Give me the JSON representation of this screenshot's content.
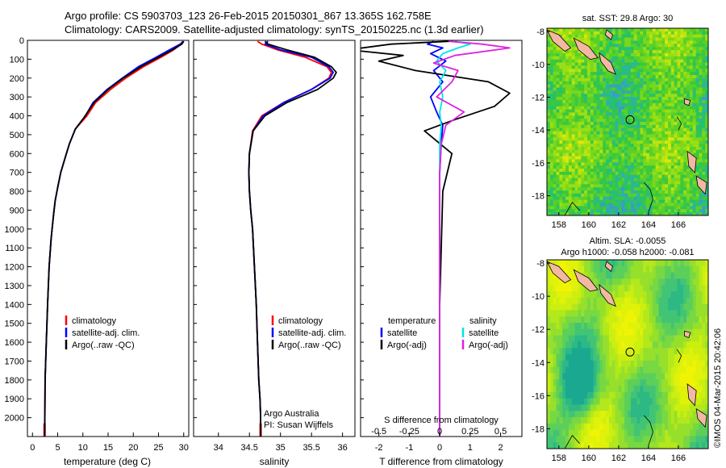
{
  "header": {
    "line1": "Argo profile: CS 5903703_123 26-Feb-2015 20150301_867 13.365S 162.758E",
    "line2": "Climatology: CARS2009. Satellite-adjusted climatology: synTS_20150225.nc (1.3d earlier)"
  },
  "colors": {
    "climatology": "#ff0000",
    "satellite": "#0000ff",
    "argo": "#000000",
    "sat_salinity": "#00e5e5",
    "argo_salinity": "#e020e0"
  },
  "legend": {
    "climatology": "climatology",
    "satellite_adj": "satellite-adj. clim.",
    "argo_raw": "Argo(..raw -QC)",
    "temperature_head": "temperature",
    "salinity_head": "salinity",
    "satellite": "satellite",
    "argo_adj": "Argo(-adj)"
  },
  "credits": {
    "org": "Argo Australia",
    "pi": "PI: Susan Wijffels",
    "stamp": "©IMOS 04-Mar-2015 20:42:06"
  },
  "chart_data": [
    {
      "type": "line",
      "id": "temperature",
      "xlabel": "temperature (deg C)",
      "ylabel": "",
      "xlim": [
        -1,
        31
      ],
      "ylim": [
        2100,
        0
      ],
      "xticks": [
        0,
        5,
        10,
        15,
        20,
        25,
        30
      ],
      "yticks": [
        0,
        100,
        200,
        300,
        400,
        500,
        600,
        700,
        800,
        900,
        1000,
        1100,
        1200,
        1300,
        1400,
        1500,
        1600,
        1700,
        1800,
        1900,
        2000
      ],
      "series": [
        {
          "name": "climatology",
          "color": "#ff0000",
          "x": [
            29.8,
            29.5,
            28.0,
            25.5,
            22.0,
            18.5,
            15.5,
            12.5,
            10.8,
            8.5,
            7.3,
            6.5,
            5.6,
            5.0,
            4.5,
            4.2,
            3.7,
            3.3,
            3.0,
            2.75,
            2.5,
            2.45,
            2.4
          ],
          "y": [
            5,
            20,
            50,
            90,
            140,
            200,
            260,
            330,
            400,
            470,
            550,
            620,
            700,
            780,
            850,
            920,
            1050,
            1200,
            1400,
            1600,
            1800,
            2000,
            2100
          ]
        },
        {
          "name": "satellite-adj. clim.",
          "color": "#0000ff",
          "x": [
            29.9,
            29.3,
            27.2,
            24.5,
            21.0,
            17.8,
            14.8,
            12.0,
            10.5,
            8.5,
            7.3,
            6.5,
            5.6,
            5.0,
            4.5,
            4.2,
            3.7,
            3.3,
            3.0,
            2.75,
            2.5,
            2.45,
            2.4
          ],
          "y": [
            5,
            20,
            50,
            90,
            140,
            200,
            260,
            330,
            400,
            470,
            550,
            620,
            700,
            780,
            850,
            920,
            1050,
            1200,
            1400,
            1600,
            1800,
            2000,
            2100
          ]
        },
        {
          "name": "Argo(..raw -QC)",
          "color": "#000000",
          "x": [
            30.0,
            29.6,
            27.8,
            25.0,
            21.5,
            18.0,
            15.0,
            12.2,
            10.2,
            8.5,
            7.3,
            6.5,
            5.6,
            5.0,
            4.5,
            4.2,
            3.7,
            3.3,
            3.0,
            2.75,
            2.5,
            2.45,
            2.4
          ],
          "y": [
            5,
            20,
            50,
            90,
            140,
            200,
            260,
            330,
            410,
            470,
            550,
            620,
            700,
            780,
            850,
            920,
            1050,
            1200,
            1400,
            1600,
            1800,
            2000,
            2100
          ]
        }
      ]
    },
    {
      "type": "line",
      "id": "salinity",
      "xlabel": "salinity",
      "ylabel": "",
      "xlim": [
        33.6,
        36.2
      ],
      "ylim": [
        2100,
        0
      ],
      "xticks": [
        34,
        34.5,
        35,
        35.5,
        36
      ],
      "series": [
        {
          "name": "climatology",
          "color": "#ff0000",
          "x": [
            34.63,
            34.7,
            34.95,
            35.4,
            35.75,
            35.82,
            35.78,
            35.5,
            35.05,
            34.7,
            34.55,
            34.5,
            34.49,
            34.5,
            34.52,
            34.55,
            34.58,
            34.61,
            34.63,
            34.65,
            34.67,
            34.68,
            34.68
          ],
          "y": [
            5,
            20,
            50,
            90,
            140,
            170,
            200,
            260,
            330,
            400,
            480,
            600,
            700,
            800,
            900,
            1000,
            1200,
            1400,
            1600,
            1800,
            1900,
            2000,
            2100
          ]
        },
        {
          "name": "satellite-adj. clim.",
          "color": "#0000ff",
          "x": [
            34.8,
            34.75,
            35.0,
            35.5,
            35.78,
            35.85,
            35.8,
            35.5,
            35.05,
            34.72,
            34.56,
            34.5,
            34.49,
            34.5,
            34.52,
            34.55,
            34.58,
            34.61,
            34.63,
            34.65,
            34.67,
            34.68,
            34.68
          ],
          "y": [
            5,
            20,
            50,
            90,
            140,
            170,
            200,
            260,
            330,
            400,
            480,
            600,
            700,
            800,
            900,
            1000,
            1200,
            1400,
            1600,
            1800,
            1900,
            2000,
            2100
          ]
        },
        {
          "name": "Argo(..raw -QC)",
          "color": "#000000",
          "x": [
            34.75,
            34.8,
            35.1,
            35.55,
            35.82,
            35.9,
            35.85,
            35.6,
            35.1,
            34.75,
            34.56,
            34.5,
            34.49,
            34.5,
            34.52,
            34.55,
            34.58,
            34.61,
            34.63,
            34.65,
            34.67,
            34.68,
            34.68
          ],
          "y": [
            5,
            20,
            50,
            90,
            140,
            170,
            200,
            260,
            330,
            400,
            480,
            600,
            700,
            800,
            900,
            1000,
            1200,
            1400,
            1600,
            1800,
            1900,
            2000,
            2100
          ]
        }
      ]
    },
    {
      "type": "line",
      "id": "difference",
      "xlabel": "T difference from climatology",
      "xlabel2": "S difference from climatology",
      "xlim": [
        -2.6,
        2.7
      ],
      "ylim": [
        2100,
        0
      ],
      "xticks": [
        -2,
        -1,
        0,
        1,
        2
      ],
      "xticks_s": [
        -0.5,
        -0.25,
        0,
        0.25,
        0.5
      ],
      "series": [
        {
          "name": "temperature satellite",
          "color": "#0000ff",
          "x": [
            -0.2,
            -0.4,
            0.1,
            -0.3,
            0.2,
            -0.2,
            0.1,
            -0.3,
            -0.1,
            0.1,
            0.05,
            0,
            0,
            0,
            0,
            0,
            0,
            0
          ],
          "y": [
            5,
            20,
            40,
            70,
            110,
            160,
            220,
            300,
            380,
            450,
            550,
            700,
            900,
            1100,
            1400,
            1700,
            2000,
            2100
          ]
        },
        {
          "name": "temperature Argo(-adj)",
          "color": "#000000",
          "x": [
            0.3,
            -1.6,
            -3.0,
            -1.2,
            -2.0,
            -0.8,
            1.6,
            2.3,
            1.8,
            0.5,
            -0.5,
            0.4,
            0.1,
            0.05,
            0,
            0,
            0,
            0
          ],
          "y": [
            5,
            20,
            50,
            80,
            110,
            160,
            220,
            280,
            350,
            420,
            480,
            600,
            800,
            1100,
            1400,
            1700,
            2000,
            2100
          ]
        },
        {
          "name": "salinity satellite",
          "color": "#00e5e5",
          "x": [
            0.5,
            1.0,
            0.6,
            0.1,
            -0.1,
            0.2,
            0.0,
            0.1,
            0.0,
            0.05,
            0,
            0,
            0,
            0,
            0,
            0,
            0,
            0
          ],
          "y": [
            5,
            20,
            40,
            70,
            110,
            160,
            220,
            300,
            380,
            450,
            550,
            700,
            900,
            1100,
            1400,
            1700,
            2000,
            2100
          ]
        },
        {
          "name": "salinity Argo(-adj)",
          "color": "#e020e0",
          "x": [
            0.3,
            1.4,
            2.3,
            0.5,
            -0.2,
            0.6,
            0.4,
            -0.1,
            0.8,
            0.2,
            0.05,
            0,
            0,
            0,
            0,
            0,
            0,
            0
          ],
          "y": [
            5,
            20,
            40,
            80,
            120,
            160,
            220,
            300,
            380,
            450,
            550,
            700,
            900,
            1100,
            1400,
            1700,
            2000,
            2100
          ]
        }
      ]
    },
    {
      "type": "heatmap",
      "id": "sst-map",
      "title": "sat. SST: 29.8  Argo: 30",
      "xlim": [
        157.2,
        168.0
      ],
      "ylim": [
        -19.2,
        -7.8
      ],
      "xticks": [
        158,
        160,
        162,
        164,
        166
      ],
      "yticks": [
        -8,
        -10,
        -12,
        -14,
        -16,
        -18
      ],
      "marker": {
        "lon": 162.76,
        "lat": -13.37
      }
    },
    {
      "type": "heatmap",
      "id": "sla-map",
      "title": "Altim. SLA: -0.0055",
      "subtitle": "Argo h1000: -0.058 h2000: -0.081",
      "xlim": [
        157.2,
        168.0
      ],
      "ylim": [
        -19.2,
        -7.8
      ],
      "xticks": [
        158,
        160,
        162,
        164,
        166
      ],
      "yticks": [
        -8,
        -10,
        -12,
        -14,
        -16,
        -18
      ],
      "marker": {
        "lon": 162.76,
        "lat": -13.37
      }
    }
  ]
}
